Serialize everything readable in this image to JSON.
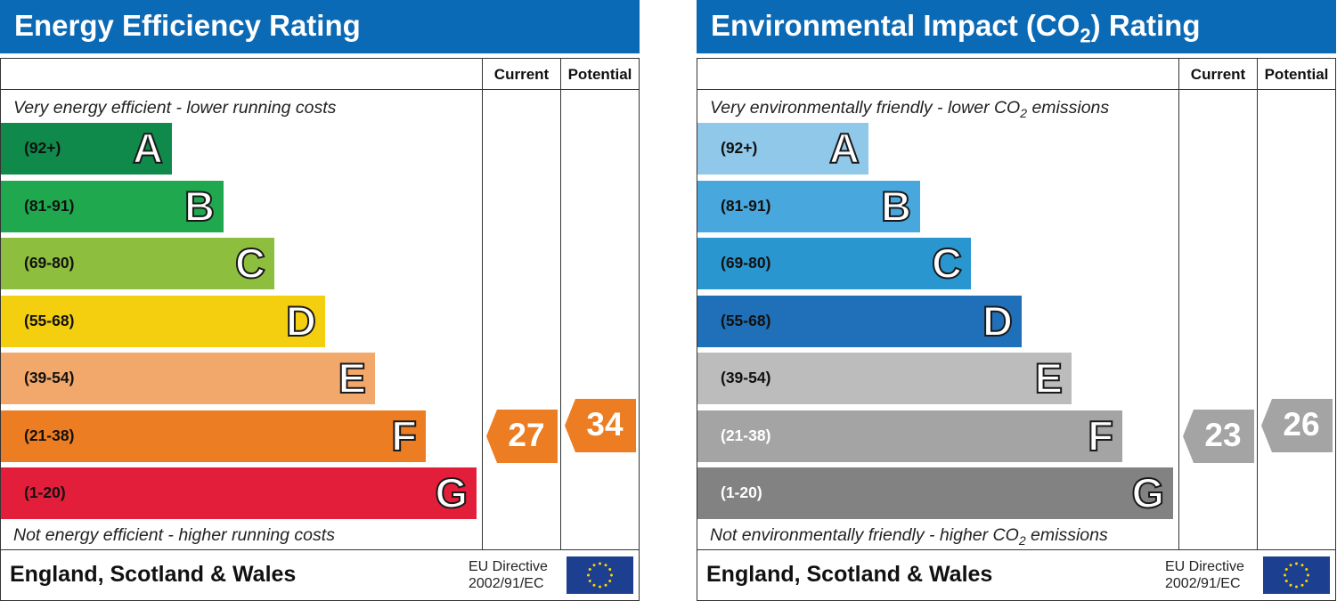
{
  "chart_data": [
    {
      "type": "bar",
      "title": "Energy Efficiency Rating",
      "column_headers": [
        "Current",
        "Potential"
      ],
      "top_note": "Very energy efficient - lower running costs",
      "bottom_note": "Not energy efficient - higher running costs",
      "bands": [
        {
          "range": "(92+)",
          "letter": "A",
          "color": "#0f8a4a"
        },
        {
          "range": "(81-91)",
          "letter": "B",
          "color": "#20a84f"
        },
        {
          "range": "(69-80)",
          "letter": "C",
          "color": "#8dbe3e"
        },
        {
          "range": "(55-68)",
          "letter": "D",
          "color": "#f4cf10"
        },
        {
          "range": "(39-54)",
          "letter": "E",
          "color": "#f2a86a"
        },
        {
          "range": "(21-38)",
          "letter": "F",
          "color": "#ed7d22"
        },
        {
          "range": "(1-20)",
          "letter": "G",
          "color": "#e31e3a"
        }
      ],
      "current": 27,
      "potential": 34,
      "indicator_color": "#ed7d22",
      "region": "England, Scotland & Wales",
      "directive_line1": "EU Directive",
      "directive_line2": "2002/91/EC"
    },
    {
      "type": "bar",
      "title_main": "Environmental Impact (CO",
      "title_sub": "2",
      "title_end": ") Rating",
      "column_headers": [
        "Current",
        "Potential"
      ],
      "top_note_main": "Very environmentally friendly - lower CO",
      "top_note_sub": "2",
      "top_note_end": " emissions",
      "bottom_note_main": "Not environmentally friendly - higher CO",
      "bottom_note_sub": "2",
      "bottom_note_end": " emissions",
      "bands": [
        {
          "range": "(92+)",
          "letter": "A",
          "color": "#8fc8e8"
        },
        {
          "range": "(81-91)",
          "letter": "B",
          "color": "#48a7dc"
        },
        {
          "range": "(69-80)",
          "letter": "C",
          "color": "#2a96d0"
        },
        {
          "range": "(55-68)",
          "letter": "D",
          "color": "#1f70b8"
        },
        {
          "range": "(39-54)",
          "letter": "E",
          "color": "#bcbcbc"
        },
        {
          "range": "(21-38)",
          "letter": "F",
          "color": "#a4a4a4"
        },
        {
          "range": "(1-20)",
          "letter": "G",
          "color": "#828282"
        }
      ],
      "current": 23,
      "potential": 26,
      "indicator_color": "#a4a4a4",
      "region": "England, Scotland & Wales",
      "directive_line1": "EU Directive",
      "directive_line2": "2002/91/EC"
    }
  ]
}
